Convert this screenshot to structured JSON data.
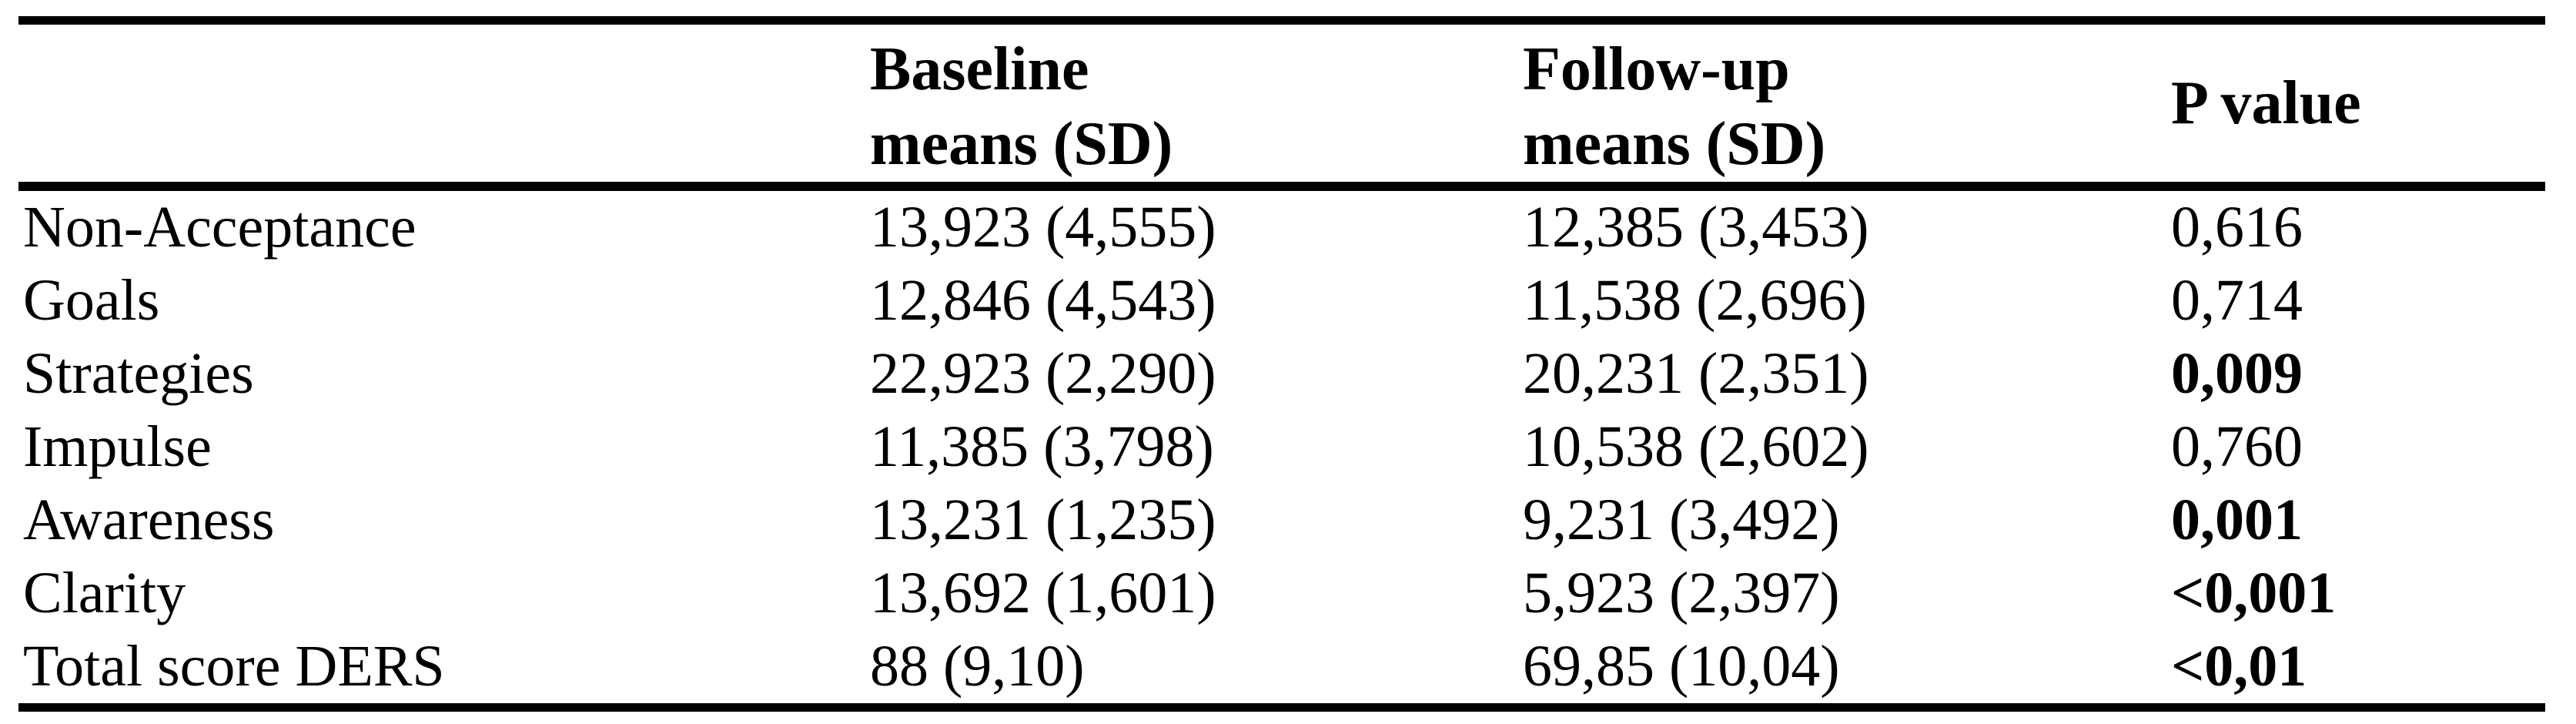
{
  "table": {
    "columns": [
      {
        "label": ""
      },
      {
        "label": "Baseline\nmeans (SD)"
      },
      {
        "label": "Follow-up\nmeans (SD)"
      },
      {
        "label": "P value"
      }
    ],
    "rows": [
      {
        "label": "Non-Acceptance",
        "baseline": "13,923 (4,555)",
        "followup": "12,385 (3,453)",
        "p": "0,616",
        "p_bold": false
      },
      {
        "label": "Goals",
        "baseline": "12,846 (4,543)",
        "followup": "11,538 (2,696)",
        "p": "0,714",
        "p_bold": false
      },
      {
        "label": "Strategies",
        "baseline": "22,923 (2,290)",
        "followup": "20,231 (2,351)",
        "p": "0,009",
        "p_bold": true
      },
      {
        "label": "Impulse",
        "baseline": "11,385 (3,798)",
        "followup": "10,538 (2,602)",
        "p": "0,760",
        "p_bold": false
      },
      {
        "label": "Awareness",
        "baseline": "13,231 (1,235)",
        "followup": "9,231 (3,492)",
        "p": "0,001",
        "p_bold": true
      },
      {
        "label": "Clarity",
        "baseline": "13,692 (1,601)",
        "followup": "5,923 (2,397)",
        "p": "<0,001",
        "p_bold": true
      },
      {
        "label": "Total score DERS",
        "baseline": "88 (9,10)",
        "followup": "69,85 (10,04)",
        "p": "<0,01",
        "p_bold": true
      }
    ]
  },
  "colors": {
    "background": "#ffffff",
    "text": "#000000",
    "rule": "#000000"
  }
}
